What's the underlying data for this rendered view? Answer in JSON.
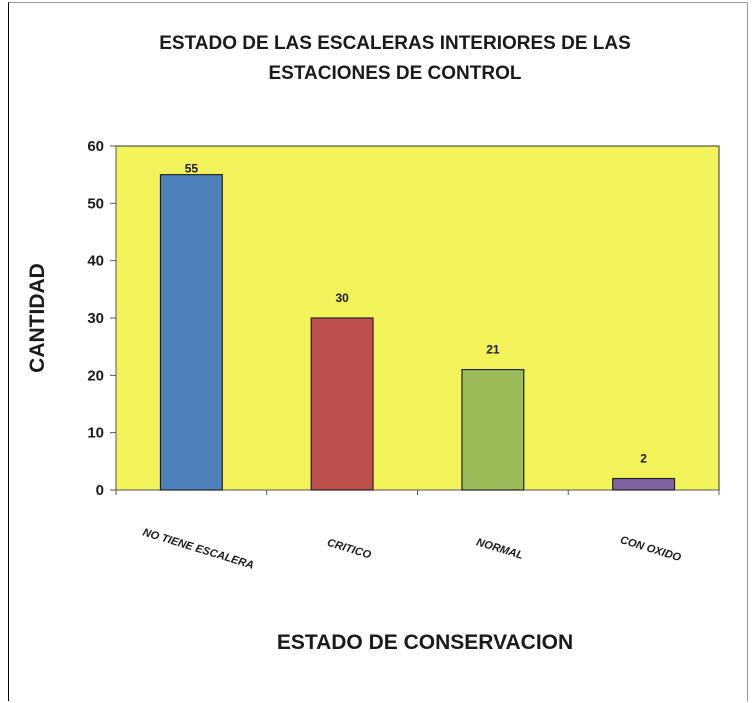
{
  "chart_data": {
    "type": "bar",
    "title_lines": [
      "ESTADO DE LAS ESCALERAS INTERIORES DE LAS",
      "ESTACIONES DE CONTROL"
    ],
    "xlabel": "ESTADO DE CONSERVACION",
    "ylabel": "CANTIDAD",
    "categories": [
      "NO TIENE ESCALERA",
      "CRITICO",
      "NORMAL",
      "CON OXIDO"
    ],
    "values": [
      55,
      30,
      21,
      2
    ],
    "bar_colors": [
      "#4f81bd",
      "#c0504d",
      "#9bbb59",
      "#8064a2"
    ],
    "plot_background": "#f2f25a",
    "ylim": [
      0,
      60
    ],
    "yticks": [
      0,
      10,
      20,
      30,
      40,
      50,
      60
    ],
    "grid": false,
    "legend": "none"
  }
}
